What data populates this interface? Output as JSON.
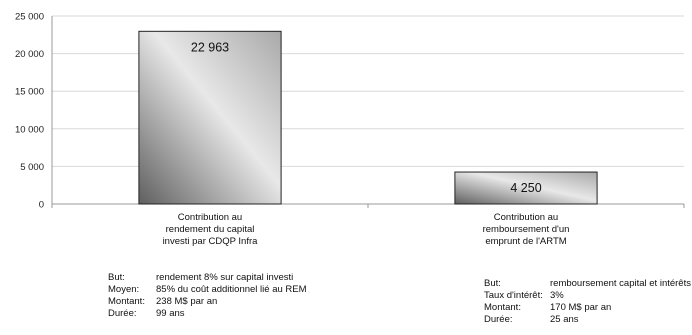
{
  "chart_data": {
    "type": "bar",
    "title": "",
    "xlabel": "",
    "ylabel": "",
    "ylim": [
      0,
      25000
    ],
    "yticks": [
      "0",
      "5 000",
      "10 000",
      "15 000",
      "20 000",
      "25 000"
    ],
    "ytick_values": [
      0,
      5000,
      10000,
      15000,
      20000,
      25000
    ],
    "grid": true,
    "categories": [
      [
        "Contribution au",
        "rendement du capital",
        "investi par CDQP Infra"
      ],
      [
        "Contribution au",
        "remboursement d'un",
        "emprunt de l'ARTM"
      ]
    ],
    "values": [
      22963,
      4250
    ],
    "value_labels": [
      "22 963",
      "4 250"
    ],
    "colors": {
      "bar_light": "#f4f4f4",
      "bar_dark": "#6e6e6e",
      "grid": "#d9d9d9",
      "axis": "#999999"
    }
  },
  "notes": {
    "left": {
      "rows": [
        {
          "k": "But:",
          "v": "rendement 8% sur capital investi"
        },
        {
          "k": "Moyen:",
          "v": "85% du coût additionnel lié au REM"
        },
        {
          "k": "Montant:",
          "v": "238 M$ par an"
        },
        {
          "k": "Durée:",
          "v": "99 ans"
        }
      ]
    },
    "right": {
      "rows": [
        {
          "k": "But:",
          "v": "remboursement capital et intérêts"
        },
        {
          "k": "Taux d'intérêt:",
          "v": "3%"
        },
        {
          "k": "Montant:",
          "v": "170 M$ par an"
        },
        {
          "k": "Durée:",
          "v": "25 ans"
        }
      ]
    }
  }
}
